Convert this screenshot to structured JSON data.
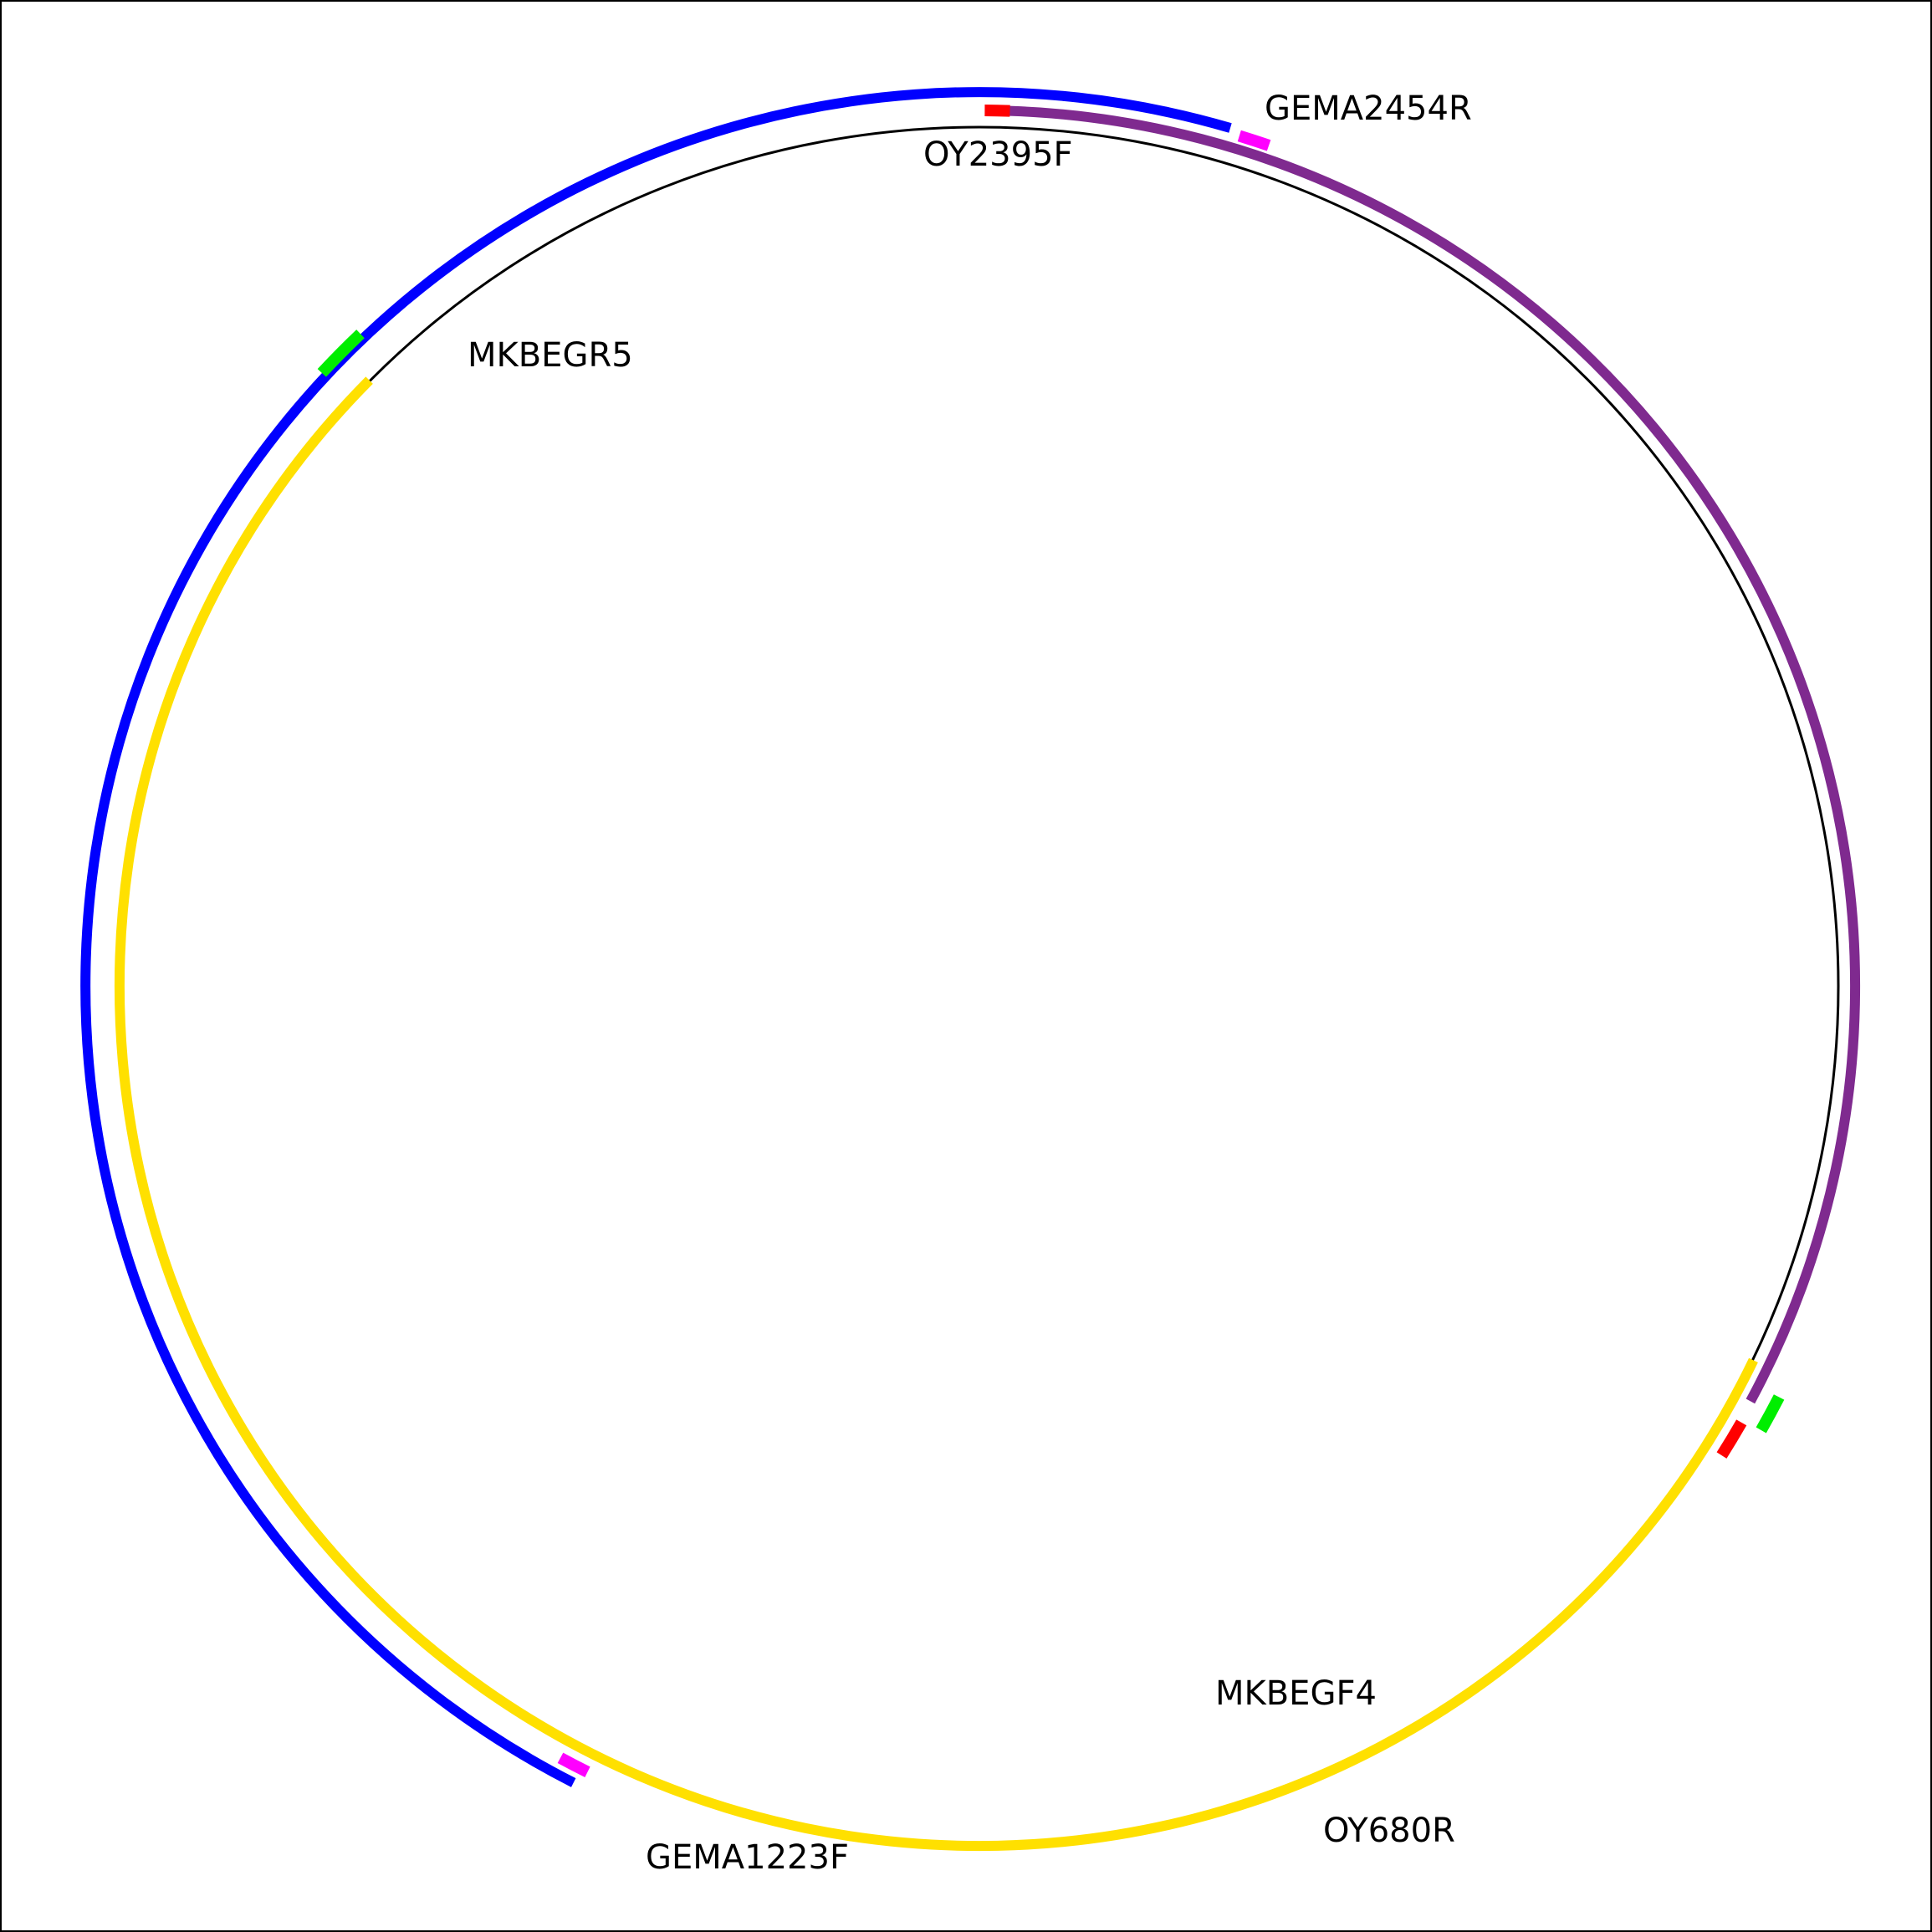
{
  "colors": {
    "backbone": "#000000",
    "blue": "#0000ff",
    "purple": "#7f2a8f",
    "yellow": "#ffe000",
    "red": "#ff0000",
    "magenta": "#ff00ff",
    "green": "#00ee00"
  },
  "segments": [
    {
      "id": "blue-product",
      "color": "blue"
    },
    {
      "id": "purple-product",
      "color": "purple"
    },
    {
      "id": "yellow-product",
      "color": "yellow"
    }
  ],
  "primers": [
    {
      "label": "OY2395F",
      "color": "red"
    },
    {
      "label": "GEMA2454R",
      "color": "magenta"
    },
    {
      "label": "MKBEGR5",
      "color": "green"
    },
    {
      "label": "MKBEGF4",
      "color": "green"
    },
    {
      "label": "OY680R",
      "color": "red"
    },
    {
      "label": "GEMA1223F",
      "color": "magenta"
    }
  ]
}
